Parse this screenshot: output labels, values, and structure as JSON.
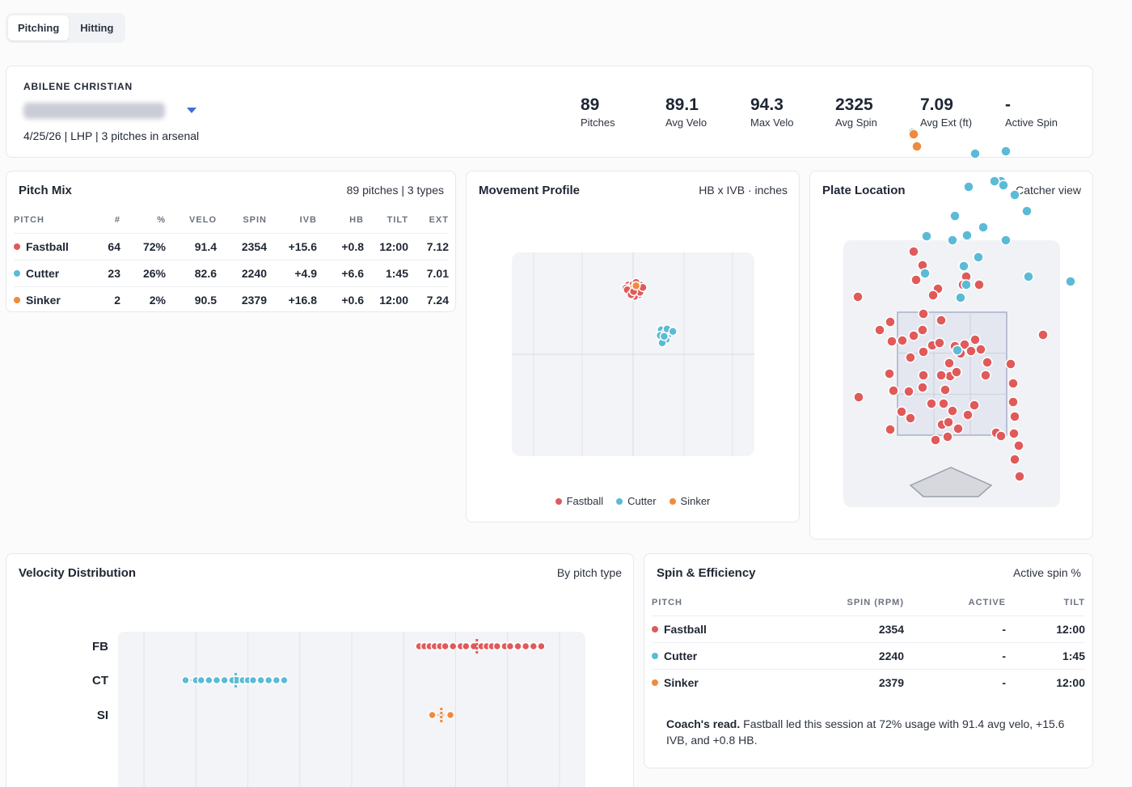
{
  "tabs": [
    {
      "label": "Pitching",
      "active": true
    },
    {
      "label": "Hitting",
      "active": false
    }
  ],
  "header": {
    "school": "ABILENE CHRISTIAN",
    "player_meta": "4/25/26 | LHP | 3 pitches in arsenal",
    "stats": [
      {
        "value": "89",
        "label": "Pitches"
      },
      {
        "value": "89.1",
        "label": "Avg Velo"
      },
      {
        "value": "94.3",
        "label": "Max Velo"
      },
      {
        "value": "2325",
        "label": "Avg Spin"
      },
      {
        "value": "7.09",
        "label": "Avg Ext (ft)"
      },
      {
        "value": "-",
        "label": "Active Spin"
      }
    ]
  },
  "colors": {
    "fastball": "#e05a5a",
    "cutter": "#5bbbd6",
    "sinker": "#f08a3c"
  },
  "pitch_mix": {
    "title": "Pitch Mix",
    "subtitle": "89 pitches | 3 types",
    "columns": [
      "PITCH",
      "#",
      "%",
      "VELO",
      "SPIN",
      "IVB",
      "HB",
      "TILT",
      "EXT"
    ],
    "rows": [
      {
        "pitch": "Fastball",
        "color": "#e05a5a",
        "count": "64",
        "pct": "72%",
        "velo": "91.4",
        "spin": "2354",
        "ivb": "+15.6",
        "hb": "+0.8",
        "tilt": "12:00",
        "ext": "7.12"
      },
      {
        "pitch": "Cutter",
        "color": "#5bbbd6",
        "count": "23",
        "pct": "26%",
        "velo": "82.6",
        "spin": "2240",
        "ivb": "+4.9",
        "hb": "+6.6",
        "tilt": "1:45",
        "ext": "7.01"
      },
      {
        "pitch": "Sinker",
        "color": "#f08a3c",
        "count": "2",
        "pct": "2%",
        "velo": "90.5",
        "spin": "2379",
        "ivb": "+16.8",
        "hb": "+0.6",
        "tilt": "12:00",
        "ext": "7.24"
      }
    ]
  },
  "movement": {
    "title": "Movement Profile",
    "subtitle": "HB x IVB · inches",
    "legend": [
      "Fastball",
      "Cutter",
      "Sinker"
    ]
  },
  "plate": {
    "title": "Plate Location",
    "subtitle": "Catcher view"
  },
  "velocity": {
    "title": "Velocity Distribution",
    "subtitle": "By pitch type",
    "row_labels": [
      "FB",
      "CT",
      "SI"
    ]
  },
  "spin": {
    "title": "Spin & Efficiency",
    "subtitle": "Active spin %",
    "columns": [
      "PITCH",
      "SPIN (RPM)",
      "ACTIVE",
      "TILT"
    ],
    "rows": [
      {
        "pitch": "Fastball",
        "color": "#e05a5a",
        "spin": "2354",
        "active": "-",
        "tilt": "12:00"
      },
      {
        "pitch": "Cutter",
        "color": "#5bbbd6",
        "spin": "2240",
        "active": "-",
        "tilt": "1:45"
      },
      {
        "pitch": "Sinker",
        "color": "#f08a3c",
        "spin": "2379",
        "active": "-",
        "tilt": "12:00"
      }
    ],
    "coach_label": "Coach's read.",
    "coach_text": " Fastball led this session at 72% usage with 91.4 avg velo, +15.6 IVB, and +0.8 HB."
  },
  "chart_data": [
    {
      "type": "scatter",
      "title": "Movement Profile",
      "xlabel": "HB",
      "ylabel": "IVB",
      "series": [
        {
          "name": "Fastball",
          "points": [
            [
              -1,
              17
            ],
            [
              -0.5,
              16.5
            ],
            [
              0,
              17.2
            ],
            [
              0.5,
              16.8
            ],
            [
              1,
              16
            ],
            [
              1.5,
              17
            ],
            [
              -1.5,
              16.2
            ],
            [
              0,
              15.6
            ],
            [
              0.8,
              15
            ],
            [
              -0.8,
              15.2
            ],
            [
              1.2,
              14.6
            ],
            [
              0.3,
              14.2
            ],
            [
              -0.2,
              16
            ],
            [
              1.8,
              15.8
            ],
            [
              -1.2,
              15.8
            ],
            [
              0.6,
              17.6
            ],
            [
              1.4,
              15.2
            ],
            [
              -0.4,
              14.6
            ],
            [
              2,
              16.4
            ],
            [
              0.1,
              15.4
            ]
          ]
        },
        {
          "name": "Cutter",
          "points": [
            [
              5.8,
              6
            ],
            [
              6.6,
              5.2
            ],
            [
              7.2,
              4.8
            ],
            [
              6.2,
              4
            ],
            [
              7.6,
              5.8
            ],
            [
              6.8,
              3.6
            ],
            [
              5.6,
              4.6
            ],
            [
              7,
              6.2
            ],
            [
              6,
              2.8
            ],
            [
              6.4,
              4.4
            ],
            [
              8.2,
              5.6
            ]
          ]
        },
        {
          "name": "Sinker",
          "points": [
            [
              0.6,
              16.8
            ],
            [
              0.6,
              16.8
            ]
          ]
        }
      ]
    },
    {
      "type": "scatter",
      "title": "Plate Location",
      "series": [
        {
          "name": "Fastball"
        },
        {
          "name": "Cutter"
        },
        {
          "name": "Sinker"
        }
      ]
    },
    {
      "type": "strip",
      "title": "Velocity Distribution",
      "categories": [
        "FB",
        "CT",
        "SI"
      ],
      "series": [
        {
          "name": "FB",
          "values": [
            89.6,
            89.8,
            90,
            90.2,
            90.4,
            90.6,
            90.9,
            91.2,
            91.4,
            91.7,
            92,
            92.2,
            92.4,
            92.6,
            92.9,
            93.1,
            93.4,
            93.7,
            94,
            94.3
          ]
        },
        {
          "name": "CT",
          "values": [
            80.6,
            81,
            81.2,
            81.5,
            81.8,
            82.1,
            82.4,
            82.6,
            82.8,
            83,
            83.2,
            83.5,
            83.8,
            84.1,
            84.4
          ]
        },
        {
          "name": "SI",
          "values": [
            90.1,
            90.8
          ]
        }
      ]
    }
  ]
}
